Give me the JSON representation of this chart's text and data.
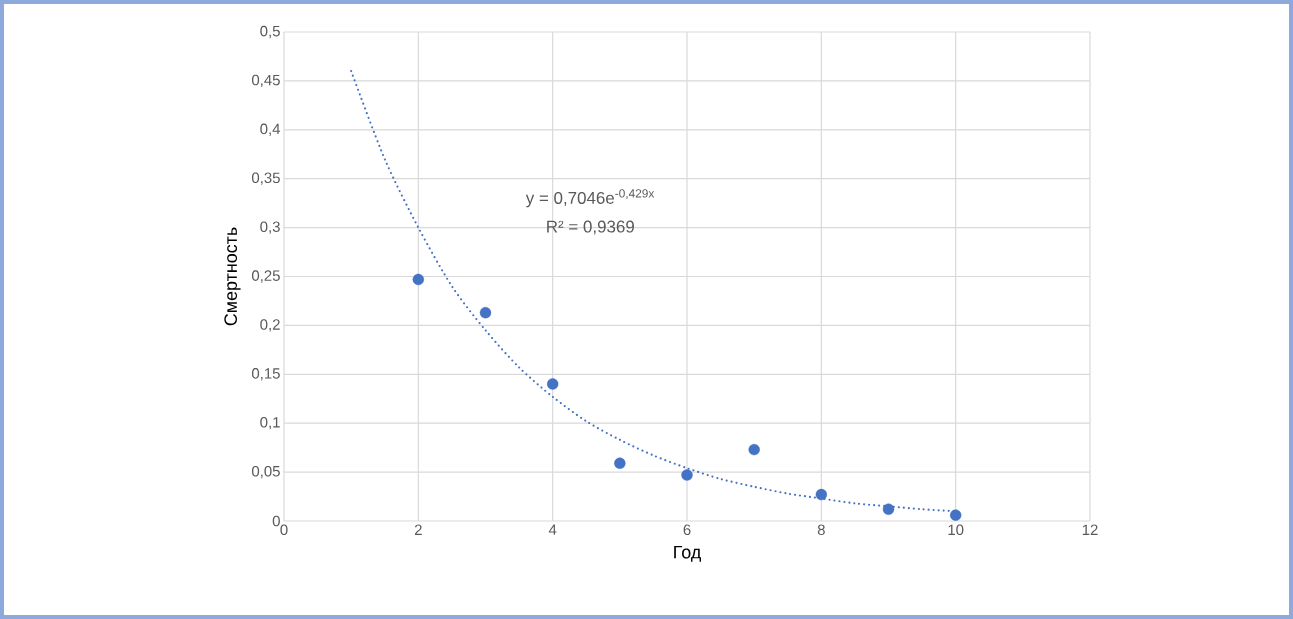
{
  "chart_data": {
    "type": "scatter",
    "xlabel": "Год",
    "ylabel": "Смертность",
    "xlim": [
      0,
      12
    ],
    "ylim": [
      0,
      0.5
    ],
    "xticks": [
      0,
      2,
      4,
      6,
      8,
      10,
      12
    ],
    "yticks": [
      0,
      {
        "value": 0.05,
        "label": "0,05"
      },
      {
        "value": 0.1,
        "label": "0,1"
      },
      {
        "value": 0.15,
        "label": "0,15"
      },
      {
        "value": 0.2,
        "label": "0,2"
      },
      {
        "value": 0.25,
        "label": "0,25"
      },
      {
        "value": 0.3,
        "label": "0,3"
      },
      {
        "value": 0.35,
        "label": "0,35"
      },
      {
        "value": 0.4,
        "label": "0,4"
      },
      {
        "value": 0.45,
        "label": "0,45"
      },
      {
        "value": 0.5,
        "label": "0,5"
      }
    ],
    "grid": true,
    "annotations": [
      "y = 0,7046e$^{-0,429x}$",
      "R² = 0,9369"
    ],
    "series": [
      {
        "color": "#4472c4",
        "marker": "circle",
        "x": [
          2,
          3,
          4,
          5,
          6,
          7,
          8,
          9,
          10
        ],
        "values": [
          0.247,
          0.213,
          0.14,
          0.059,
          0.047,
          0.073,
          0.027,
          0.012,
          0.006
        ]
      },
      {
        "type": "line",
        "color": "#4472c4",
        "line_style": "dotted",
        "marker": "none",
        "x": [
          1,
          1.5,
          2,
          2.5,
          3,
          3.5,
          4,
          4.5,
          5,
          5.5,
          6,
          6.5,
          7,
          7.5,
          8,
          8.5,
          9,
          9.5,
          10
        ],
        "values": [
          0.46,
          0.37,
          0.3,
          0.24,
          0.195,
          0.157,
          0.127,
          0.102,
          0.083,
          0.067,
          0.054,
          0.043,
          0.035,
          0.028,
          0.023,
          0.018,
          0.015,
          0.012,
          0.01
        ]
      }
    ]
  }
}
